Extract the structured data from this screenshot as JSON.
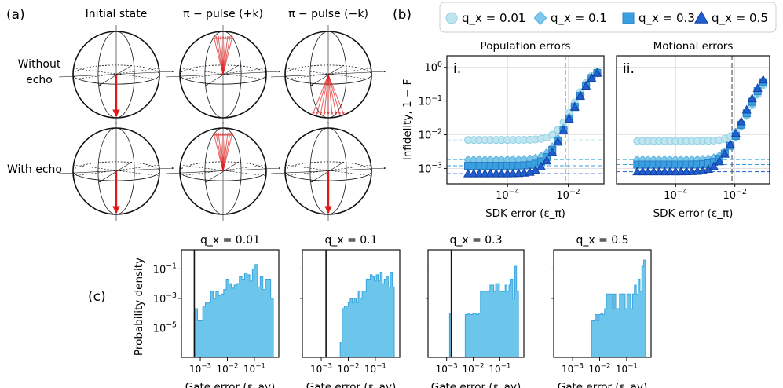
{
  "panel_labels": {
    "a": "(a)",
    "b": "(b)",
    "c": "(c)"
  },
  "bloch": {
    "col_titles": [
      "Initial state",
      "π − pulse (+k)",
      "π − pulse (−k)"
    ],
    "row_labels": [
      [
        "Without",
        "echo"
      ],
      [
        "With echo"
      ]
    ]
  },
  "legend": [
    {
      "label": "q_x = 0.01",
      "marker": "circle",
      "color": "#bfe6f0"
    },
    {
      "label": "q_x = 0.1",
      "marker": "diamond",
      "color": "#7fc8ea"
    },
    {
      "label": "q_x = 0.3",
      "marker": "square",
      "color": "#3a9fe0"
    },
    {
      "label": "q_x = 0.5",
      "marker": "triangle",
      "color": "#1f5fd0"
    }
  ],
  "chart_data": [
    {
      "type": "scatter",
      "id": "i",
      "tag": "i.",
      "title": "Population errors",
      "xlabel": "SDK error (ε_π)",
      "ylabel": "Infidelity, 1 − F",
      "xscale": "log",
      "yscale": "log",
      "xlim": [
        1e-06,
        0.15
      ],
      "ylim": [
        0.00035,
        2.2
      ],
      "xticks": [
        [
          "10^-4",
          0.0001
        ],
        [
          "10^-2",
          0.01
        ]
      ],
      "yticks": [
        [
          "10^-3",
          0.001
        ],
        [
          "10^-2",
          0.01
        ],
        [
          "10^-1",
          0.1
        ],
        [
          "10^0",
          1
        ]
      ],
      "vline": 0.008,
      "series": [
        {
          "name": "q_x = 0.01",
          "marker": "circle",
          "color": "#bfe6f0",
          "edge": "#8fd0e4",
          "floor": 0.007,
          "k": 340
        },
        {
          "name": "q_x = 0.1",
          "marker": "diamond",
          "color": "#7fc8ea",
          "edge": "#5ab2e0",
          "floor": 0.0018,
          "k": 280
        },
        {
          "name": "q_x = 0.3",
          "marker": "square",
          "color": "#3a9fe0",
          "edge": "#2a80c8",
          "floor": 0.0012,
          "k": 260
        },
        {
          "name": "q_x = 0.5",
          "marker": "triangle",
          "color": "#1f5fd0",
          "edge": "#1540a0",
          "floor": 0.0007,
          "k": 260
        }
      ]
    },
    {
      "type": "scatter",
      "id": "ii",
      "tag": "ii.",
      "title": "Motional errors",
      "xlabel": "SDK error (ε_π)",
      "ylabel": "",
      "xscale": "log",
      "yscale": "log",
      "xlim": [
        1e-06,
        0.15
      ],
      "ylim": [
        0.00035,
        2.2
      ],
      "xticks": [
        [
          "10^-4",
          0.0001
        ],
        [
          "10^-2",
          0.01
        ]
      ],
      "yticks": [],
      "vline": 0.008,
      "series": [
        {
          "name": "q_x = 0.01",
          "marker": "circle",
          "color": "#bfe6f0",
          "edge": "#8fd0e4",
          "floor": 0.0065,
          "k": 50
        },
        {
          "name": "q_x = 0.1",
          "marker": "diamond",
          "color": "#7fc8ea",
          "edge": "#5ab2e0",
          "floor": 0.0018,
          "k": 60
        },
        {
          "name": "q_x = 0.3",
          "marker": "square",
          "color": "#3a9fe0",
          "edge": "#2a80c8",
          "floor": 0.0013,
          "k": 70
        },
        {
          "name": "q_x = 0.5",
          "marker": "triangle",
          "color": "#1f5fd0",
          "edge": "#1540a0",
          "floor": 0.0008,
          "k": 90
        }
      ]
    },
    {
      "type": "histogram",
      "title": "q_x = 0.01",
      "ylabel": "Probability density",
      "xlabel": "Gate error (ε_av)",
      "xscale": "log",
      "yscale": "log",
      "xlim": [
        0.0002,
        0.8
      ],
      "ylim": [
        1e-07,
        2
      ],
      "vline": 0.0006,
      "bins_log10": [
        -3.2,
        -0.3
      ],
      "values": [
        0.0002,
        3e-05,
        3e-05,
        0.0003,
        0.0005,
        0.0005,
        0.003,
        0.001,
        0.003,
        0.0015,
        0.002,
        0.004,
        0.02,
        0.01,
        0.005,
        0.008,
        0.01,
        0.03,
        0.02,
        0.05,
        0.04,
        0.015,
        0.1,
        0.2,
        0.006,
        0.03,
        0.004,
        0.02,
        0.02,
        0.001
      ]
    },
    {
      "type": "histogram",
      "title": "q_x = 0.1",
      "ylabel": "",
      "xlabel": "Gate error (ε_av)",
      "xscale": "log",
      "yscale": "log",
      "xlim": [
        0.0002,
        0.8
      ],
      "ylim": [
        1e-07,
        2
      ],
      "vline": 0.0015,
      "bins_log10": [
        -2.3,
        -0.3
      ],
      "values": [
        1e-06,
        0.0002,
        0.0003,
        0.0003,
        0.0005,
        0.001,
        0.0005,
        0.001,
        0.0005,
        0.003,
        0.001,
        0.003,
        0.003,
        0.02,
        0.02,
        0.04,
        0.03,
        0.015,
        0.04,
        0.015,
        0.06,
        0.01,
        0.02,
        0.03,
        0.006,
        0.06,
        0.006
      ]
    },
    {
      "type": "histogram",
      "title": "q_x = 0.3",
      "ylabel": "",
      "xlabel": "Gate error (ε_av)",
      "xscale": "log",
      "yscale": "log",
      "xlim": [
        0.0002,
        0.8
      ],
      "ylim": [
        1e-07,
        2
      ],
      "vline": 0.0015,
      "bins_log10": [
        -2.3,
        -0.3
      ],
      "values": [
        8e-05,
        0.0001,
        8e-05,
        8e-05,
        0.0001,
        0.0001,
        8e-05,
        0.0001,
        0.003,
        0.003,
        0.003,
        0.003,
        0.003,
        0.008,
        0.008,
        0.003,
        0.01,
        0.01,
        0.003,
        0.003,
        0.003,
        0.008,
        0.003,
        0.008,
        0.02,
        0.001,
        0.15,
        0.003
      ],
      "spike": {
        "log10": -2.85,
        "value": 0.0001
      }
    },
    {
      "type": "histogram",
      "title": "q_x = 0.5",
      "ylabel": "",
      "xlabel": "Gate error (ε_av)",
      "xscale": "log",
      "yscale": "log",
      "xlim": [
        0.0002,
        0.8
      ],
      "ylim": [
        1e-07,
        2
      ],
      "vline": null,
      "bins_log10": [
        -2.3,
        -0.3
      ],
      "values": [
        3e-05,
        3e-05,
        8e-05,
        3e-05,
        8e-05,
        0.0001,
        8e-05,
        0.0002,
        0.002,
        0.002,
        0.002,
        0.0002,
        0.002,
        0.0002,
        0.0002,
        0.002,
        0.002,
        0.002,
        0.0002,
        0.002,
        0.002,
        0.0002,
        0.002,
        0.008,
        0.002,
        0.02,
        0.003,
        0.15,
        0.4
      ]
    }
  ],
  "x_tick_labels_hist": [
    "10^-3",
    "10^-2",
    "10^-1"
  ],
  "y_tick_labels_hist": [
    "10^-1",
    "10^-3",
    "10^-5"
  ]
}
